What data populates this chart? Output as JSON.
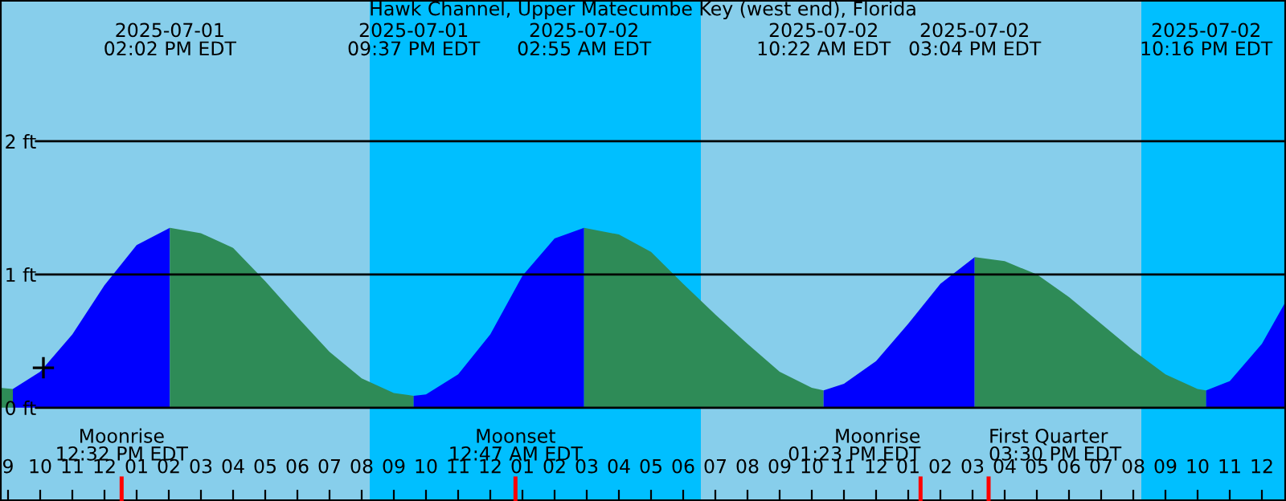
{
  "chart_data": {
    "type": "area",
    "title": "Hawk Channel, Upper Matecumbe Key (west end), Florida",
    "xlim": [
      "2025-07-01T08:45",
      "2025-07-03T00:45"
    ],
    "ylim": [
      -0.7,
      3.06
    ],
    "yticks": [
      {
        "value": 0,
        "label": "0 ft"
      },
      {
        "value": 1,
        "label": "1 ft"
      },
      {
        "value": 2,
        "label": "2 ft"
      }
    ],
    "xticks": [
      {
        "value": "2025-07-01T09:00",
        "label": "9"
      },
      {
        "value": "2025-07-01T10:00",
        "label": "10"
      },
      {
        "value": "2025-07-01T11:00",
        "label": "11"
      },
      {
        "value": "2025-07-01T12:00",
        "label": "12"
      },
      {
        "value": "2025-07-01T13:00",
        "label": "01"
      },
      {
        "value": "2025-07-01T14:00",
        "label": "02"
      },
      {
        "value": "2025-07-01T15:00",
        "label": "03"
      },
      {
        "value": "2025-07-01T16:00",
        "label": "04"
      },
      {
        "value": "2025-07-01T17:00",
        "label": "05"
      },
      {
        "value": "2025-07-01T18:00",
        "label": "06"
      },
      {
        "value": "2025-07-01T19:00",
        "label": "07"
      },
      {
        "value": "2025-07-01T20:00",
        "label": "08"
      },
      {
        "value": "2025-07-01T21:00",
        "label": "09"
      },
      {
        "value": "2025-07-01T22:00",
        "label": "10"
      },
      {
        "value": "2025-07-01T23:00",
        "label": "11"
      },
      {
        "value": "2025-07-02T00:00",
        "label": "12"
      },
      {
        "value": "2025-07-02T01:00",
        "label": "01"
      },
      {
        "value": "2025-07-02T02:00",
        "label": "02"
      },
      {
        "value": "2025-07-02T03:00",
        "label": "03"
      },
      {
        "value": "2025-07-02T04:00",
        "label": "04"
      },
      {
        "value": "2025-07-02T05:00",
        "label": "05"
      },
      {
        "value": "2025-07-02T06:00",
        "label": "06"
      },
      {
        "value": "2025-07-02T07:00",
        "label": "07"
      },
      {
        "value": "2025-07-02T08:00",
        "label": "08"
      },
      {
        "value": "2025-07-02T09:00",
        "label": "09"
      },
      {
        "value": "2025-07-02T10:00",
        "label": "10"
      },
      {
        "value": "2025-07-02T11:00",
        "label": "11"
      },
      {
        "value": "2025-07-02T12:00",
        "label": "12"
      },
      {
        "value": "2025-07-02T13:00",
        "label": "01"
      },
      {
        "value": "2025-07-02T14:00",
        "label": "02"
      },
      {
        "value": "2025-07-02T15:00",
        "label": "03"
      },
      {
        "value": "2025-07-02T16:00",
        "label": "04"
      },
      {
        "value": "2025-07-02T17:00",
        "label": "05"
      },
      {
        "value": "2025-07-02T18:00",
        "label": "06"
      },
      {
        "value": "2025-07-02T19:00",
        "label": "07"
      },
      {
        "value": "2025-07-02T20:00",
        "label": "08"
      },
      {
        "value": "2025-07-02T21:00",
        "label": "09"
      },
      {
        "value": "2025-07-02T22:00",
        "label": "10"
      },
      {
        "value": "2025-07-02T23:00",
        "label": "11"
      },
      {
        "value": "2025-07-03T00:00",
        "label": "12"
      }
    ],
    "grid": "y",
    "bands": [
      {
        "axis": "x",
        "from": "2025-07-01T08:45",
        "to": "2025-07-01T20:15",
        "color": "#87ceeb"
      },
      {
        "axis": "x",
        "from": "2025-07-01T20:15",
        "to": "2025-07-02T06:33",
        "color": "#00bfff"
      },
      {
        "axis": "x",
        "from": "2025-07-02T06:33",
        "to": "2025-07-02T20:15",
        "color": "#87ceeb"
      },
      {
        "axis": "x",
        "from": "2025-07-02T20:15",
        "to": "2025-07-03T00:45",
        "color": "#00bfff"
      }
    ],
    "series": [
      {
        "color": "#2e8b57",
        "x": [
          "2025-07-01T08:45",
          "2025-07-01T09:09"
        ],
        "values": [
          0.15,
          0.14
        ]
      },
      {
        "color": "#0000ff",
        "x": [
          "2025-07-01T09:09",
          "2025-07-01T10:00",
          "2025-07-01T11:00",
          "2025-07-01T12:00",
          "2025-07-01T13:00",
          "2025-07-01T14:02"
        ],
        "values": [
          0.14,
          0.27,
          0.55,
          0.92,
          1.22,
          1.35
        ]
      },
      {
        "color": "#2e8b57",
        "x": [
          "2025-07-01T14:02",
          "2025-07-01T15:00",
          "2025-07-01T16:00",
          "2025-07-01T17:00",
          "2025-07-01T18:00",
          "2025-07-01T19:00",
          "2025-07-01T20:00",
          "2025-07-01T21:00",
          "2025-07-01T21:37"
        ],
        "values": [
          1.35,
          1.31,
          1.2,
          0.95,
          0.68,
          0.42,
          0.22,
          0.11,
          0.09
        ]
      },
      {
        "color": "#0000ff",
        "x": [
          "2025-07-01T21:37",
          "2025-07-01T22:00",
          "2025-07-01T23:00",
          "2025-07-02T00:00",
          "2025-07-02T01:00",
          "2025-07-02T02:00",
          "2025-07-02T02:55"
        ],
        "values": [
          0.09,
          0.1,
          0.25,
          0.55,
          0.99,
          1.27,
          1.35
        ]
      },
      {
        "color": "#2e8b57",
        "x": [
          "2025-07-02T02:55",
          "2025-07-02T04:00",
          "2025-07-02T05:00",
          "2025-07-02T06:00",
          "2025-07-02T07:00",
          "2025-07-02T08:00",
          "2025-07-02T09:00",
          "2025-07-02T10:00",
          "2025-07-02T10:22"
        ],
        "values": [
          1.35,
          1.3,
          1.17,
          0.93,
          0.7,
          0.48,
          0.27,
          0.15,
          0.13
        ]
      },
      {
        "color": "#0000ff",
        "x": [
          "2025-07-02T10:22",
          "2025-07-02T11:00",
          "2025-07-02T12:00",
          "2025-07-02T13:00",
          "2025-07-02T14:00",
          "2025-07-02T15:04"
        ],
        "values": [
          0.13,
          0.18,
          0.35,
          0.63,
          0.93,
          1.13
        ]
      },
      {
        "color": "#2e8b57",
        "x": [
          "2025-07-02T15:04",
          "2025-07-02T16:00",
          "2025-07-02T17:00",
          "2025-07-02T18:00",
          "2025-07-02T19:00",
          "2025-07-02T20:00",
          "2025-07-02T21:00",
          "2025-07-02T22:00",
          "2025-07-02T22:16"
        ],
        "values": [
          1.13,
          1.1,
          1.0,
          0.83,
          0.63,
          0.43,
          0.25,
          0.14,
          0.13
        ]
      },
      {
        "color": "#0000ff",
        "x": [
          "2025-07-02T22:16",
          "2025-07-02T23:00",
          "2025-07-03T00:00",
          "2025-07-03T00:45"
        ],
        "values": [
          0.13,
          0.2,
          0.48,
          0.8
        ]
      },
      {
        "type": "scatter",
        "marker": "cross",
        "color": "#000000",
        "x": [
          "2025-07-01T10:06"
        ],
        "values": [
          0.3
        ]
      }
    ],
    "annotations": [
      "2025-07-01\n02:02 PM EDT",
      "2025-07-01\n09:37 PM EDT",
      "2025-07-02\n02:55 AM EDT",
      "2025-07-02\n10:22 AM EDT",
      "2025-07-02\n03:04 PM EDT",
      "2025-07-02\n10:16 PM EDT"
    ],
    "ref_lines": [
      {
        "axis": "x",
        "value": "2025-07-01T12:32",
        "label": "Moonrise\n12:32 PM EDT",
        "color": "#ff0000"
      },
      {
        "axis": "x",
        "value": "2025-07-02T00:47",
        "label": "Moonset\n12:47 AM EDT",
        "color": "#ff0000"
      },
      {
        "axis": "x",
        "value": "2025-07-02T13:23",
        "label": "Moonrise\n01:23 PM EDT",
        "color": "#ff0000"
      },
      {
        "axis": "x",
        "value": "2025-07-02T15:30",
        "label": "First Quarter\n03:30 PM EDT",
        "color": "#ff0000"
      }
    ]
  }
}
